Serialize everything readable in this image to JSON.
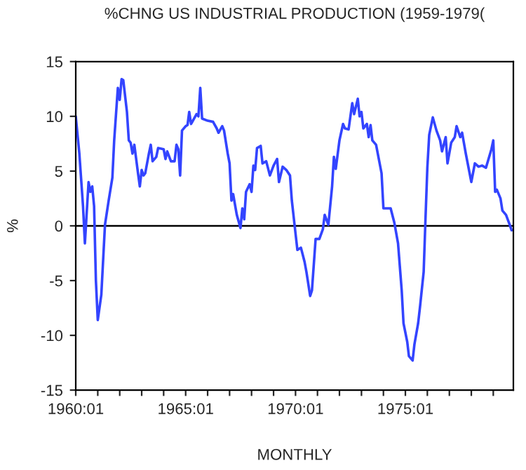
{
  "chart_data": {
    "type": "line",
    "title": "%CHNG US INDUSTRIAL PRODUCTION (1959-1979(",
    "xlabel": "MONTHLY",
    "ylabel": "%",
    "series": [
      {
        "color": "#3344ff",
        "x": [
          "1960-01",
          "1960-03",
          "1960-05",
          "1960-06",
          "1960-08",
          "1960-09",
          "1960-10",
          "1960-11",
          "1960-12",
          "1961-01",
          "1961-03",
          "1961-05",
          "1961-07",
          "1961-09",
          "1961-10",
          "1961-12",
          "1962-01",
          "1962-02",
          "1962-03",
          "1962-05",
          "1962-06",
          "1962-07",
          "1962-08",
          "1962-09",
          "1962-11",
          "1962-12",
          "1963-01",
          "1963-02",
          "1963-03",
          "1963-05",
          "1963-06",
          "1963-07",
          "1963-09",
          "1963-10",
          "1964-01",
          "1964-02",
          "1964-03",
          "1964-05",
          "1964-07",
          "1964-08",
          "1964-09",
          "1964-10",
          "1964-11",
          "1965-01",
          "1965-02",
          "1965-03",
          "1965-04",
          "1965-05",
          "1965-07",
          "1965-08",
          "1965-09",
          "1965-10",
          "1966-01",
          "1966-04",
          "1966-06",
          "1966-07",
          "1966-09",
          "1966-10",
          "1966-12",
          "1967-01",
          "1967-02",
          "1967-03",
          "1967-05",
          "1967-07",
          "1967-08",
          "1967-09",
          "1967-10",
          "1967-12",
          "1968-01",
          "1968-02",
          "1968-03",
          "1968-04",
          "1968-06",
          "1968-07",
          "1968-09",
          "1968-11",
          "1969-01",
          "1969-03",
          "1969-04",
          "1969-06",
          "1969-08",
          "1969-10",
          "1969-11",
          "1970-01",
          "1970-02",
          "1970-04",
          "1970-06",
          "1970-07",
          "1970-09",
          "1970-10",
          "1970-12",
          "1971-02",
          "1971-04",
          "1971-05",
          "1971-07",
          "1971-09",
          "1971-10",
          "1971-11",
          "1972-01",
          "1972-03",
          "1972-04",
          "1972-06",
          "1972-08",
          "1972-09",
          "1972-11",
          "1972-12",
          "1973-01",
          "1973-02",
          "1973-04",
          "1973-05",
          "1973-06",
          "1973-07",
          "1973-09",
          "1973-12",
          "1974-01",
          "1974-05",
          "1974-07",
          "1974-09",
          "1974-11",
          "1974-12",
          "1975-02",
          "1975-03",
          "1975-05",
          "1975-06",
          "1975-08",
          "1975-09",
          "1975-11",
          "1975-12",
          "1976-01",
          "1976-02",
          "1976-04",
          "1976-06",
          "1976-08",
          "1976-09",
          "1976-11",
          "1976-12",
          "1977-02",
          "1977-04",
          "1977-05",
          "1977-07",
          "1977-08",
          "1977-10",
          "1978-01",
          "1978-03",
          "1978-05",
          "1978-07",
          "1978-09",
          "1978-12",
          "1979-01",
          "1979-02",
          "1979-03",
          "1979-05",
          "1979-06",
          "1979-08",
          "1979-10",
          "1979-11"
        ],
        "values": [
          10.0,
          6.6,
          1.8,
          -1.6,
          4.0,
          3.1,
          3.6,
          1.8,
          -5.0,
          -8.6,
          -6.3,
          0.1,
          2.3,
          4.4,
          7.8,
          12.6,
          11.5,
          13.4,
          13.3,
          10.4,
          7.8,
          7.6,
          6.6,
          7.4,
          4.8,
          3.6,
          5.1,
          4.6,
          4.8,
          6.6,
          7.4,
          5.9,
          6.3,
          7.1,
          7.0,
          6.1,
          6.8,
          5.9,
          5.9,
          7.4,
          7.0,
          4.6,
          8.7,
          9.1,
          9.2,
          10.4,
          9.3,
          9.6,
          10.2,
          10.0,
          12.6,
          9.8,
          9.6,
          9.5,
          8.9,
          8.5,
          9.1,
          8.7,
          6.6,
          5.7,
          2.3,
          2.9,
          1.0,
          -0.2,
          1.6,
          0.6,
          3.1,
          3.8,
          3.1,
          5.5,
          5.1,
          7.1,
          7.3,
          5.7,
          5.9,
          4.6,
          5.5,
          6.1,
          4.0,
          5.4,
          5.1,
          4.6,
          2.3,
          -0.7,
          -2.2,
          -2.0,
          -3.3,
          -4.2,
          -6.4,
          -5.9,
          -1.2,
          -1.2,
          -0.3,
          1.0,
          0.1,
          3.6,
          6.3,
          5.2,
          7.8,
          9.3,
          8.9,
          8.8,
          11.2,
          10.2,
          11.6,
          10.0,
          10.4,
          8.9,
          9.3,
          8.1,
          9.2,
          7.8,
          7.4,
          4.8,
          1.6,
          1.6,
          0.3,
          -1.6,
          -5.9,
          -8.9,
          -10.6,
          -11.9,
          -12.3,
          -10.8,
          -8.9,
          -7.4,
          -4.2,
          0.6,
          5.3,
          8.3,
          9.9,
          8.7,
          7.8,
          6.8,
          8.1,
          5.7,
          7.6,
          8.1,
          9.1,
          8.1,
          8.5,
          6.6,
          4.0,
          5.7,
          5.4,
          5.5,
          5.3,
          7.0,
          7.8,
          3.1,
          3.3,
          2.5,
          1.4,
          1.0,
          0.1,
          -0.4
        ]
      }
    ],
    "xlim": [
      "1960-01",
      "1979-12"
    ],
    "xticks": [
      {
        "value": "1960-01",
        "label": "1960:01"
      },
      {
        "value": "1961-01",
        "label": null
      },
      {
        "value": "1962-01",
        "label": null
      },
      {
        "value": "1963-01",
        "label": null
      },
      {
        "value": "1964-01",
        "label": null
      },
      {
        "value": "1965-01",
        "label": "1965:01"
      },
      {
        "value": "1966-01",
        "label": null
      },
      {
        "value": "1967-01",
        "label": null
      },
      {
        "value": "1968-01",
        "label": null
      },
      {
        "value": "1969-01",
        "label": null
      },
      {
        "value": "1970-01",
        "label": "1970:01"
      },
      {
        "value": "1971-01",
        "label": null
      },
      {
        "value": "1972-01",
        "label": null
      },
      {
        "value": "1973-01",
        "label": null
      },
      {
        "value": "1974-01",
        "label": null
      },
      {
        "value": "1975-01",
        "label": "1975:01"
      },
      {
        "value": "1976-01",
        "label": null
      },
      {
        "value": "1977-01",
        "label": null
      },
      {
        "value": "1978-01",
        "label": null
      },
      {
        "value": "1979-01",
        "label": null
      }
    ],
    "ylim": [
      -15,
      15
    ],
    "yticks": [
      -15,
      -10,
      -5,
      0,
      5,
      10,
      15
    ],
    "ref_lines": [
      {
        "axis": "y",
        "value": 0,
        "color": "#000000"
      }
    ],
    "grid": false,
    "legend": false,
    "marker": "none",
    "line_style": "solid"
  }
}
